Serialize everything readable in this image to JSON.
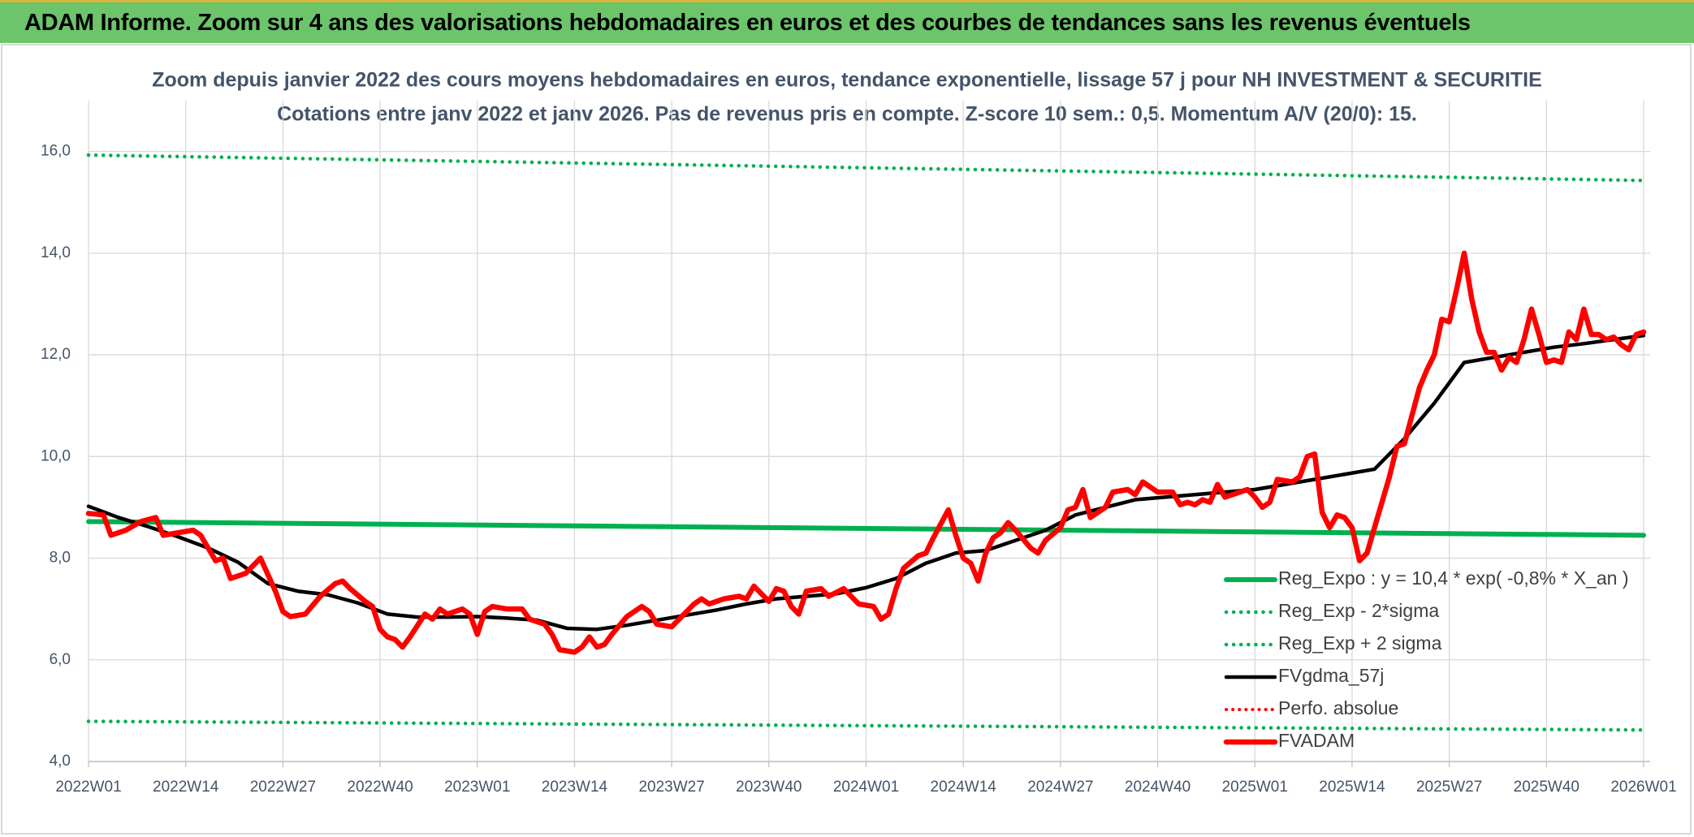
{
  "banner": {
    "title": "ADAM Informe. Zoom sur 4 ans des valorisations hebdomadaires en euros et des courbes de tendances sans les revenus éventuels"
  },
  "chart_data": {
    "type": "line",
    "title": "Zoom depuis janvier 2022 des cours moyens hebdomadaires en euros, tendance exponentielle, lissage 57 j pour NH INVESTMENT & SECURITIE",
    "subtitle": "Cotations entre janv 2022 et janv 2026. Pas de revenus pris en compte. Z-score 10 sem.: 0,5. Momentum A/V (20/0): 15.",
    "xlim": [
      0,
      208
    ],
    "xticks": [
      {
        "value": 0,
        "label": "2022W01"
      },
      {
        "value": 13,
        "label": "2022W14"
      },
      {
        "value": 26,
        "label": "2022W27"
      },
      {
        "value": 39,
        "label": "2022W40"
      },
      {
        "value": 52,
        "label": "2023W01"
      },
      {
        "value": 65,
        "label": "2023W14"
      },
      {
        "value": 78,
        "label": "2023W27"
      },
      {
        "value": 91,
        "label": "2023W40"
      },
      {
        "value": 104,
        "label": "2024W01"
      },
      {
        "value": 117,
        "label": "2024W14"
      },
      {
        "value": 130,
        "label": "2024W27"
      },
      {
        "value": 143,
        "label": "2024W40"
      },
      {
        "value": 156,
        "label": "2025W01"
      },
      {
        "value": 169,
        "label": "2025W14"
      },
      {
        "value": 182,
        "label": "2025W27"
      },
      {
        "value": 195,
        "label": "2025W40"
      },
      {
        "value": 208,
        "label": "2026W01"
      }
    ],
    "ylim": [
      4,
      17
    ],
    "yticks": [
      {
        "value": 4,
        "label": "4,0"
      },
      {
        "value": 6,
        "label": "6,0"
      },
      {
        "value": 8,
        "label": "8,0"
      },
      {
        "value": 10,
        "label": "10,0"
      },
      {
        "value": 12,
        "label": "12,0"
      },
      {
        "value": 14,
        "label": "14,0"
      },
      {
        "value": 16,
        "label": "16,0"
      }
    ],
    "grid": true,
    "legend": "bottom-right",
    "series": [
      {
        "name": "Reg_Expo : y = 10,4 * exp( -0,8% *  X_an )",
        "color": "#00b050",
        "dash": "solid",
        "x": [
          0,
          208
        ],
        "values": [
          8.72,
          8.45
        ]
      },
      {
        "name": "Reg_Exp - 2*sigma",
        "color": "#00b050",
        "dash": "dotted",
        "x": [
          0,
          208
        ],
        "values": [
          4.79,
          4.62
        ]
      },
      {
        "name": "Reg_Exp + 2 sigma",
        "color": "#00b050",
        "dash": "dotted",
        "x": [
          0,
          208
        ],
        "values": [
          15.93,
          15.43
        ]
      },
      {
        "name": "FVgdma_57j",
        "color": "#000000",
        "dash": "solid",
        "x": [
          0,
          4,
          8,
          12,
          16,
          20,
          24,
          28,
          32,
          36,
          40,
          44,
          48,
          52,
          56,
          60,
          64,
          68,
          72,
          76,
          80,
          84,
          88,
          92,
          96,
          100,
          104,
          108,
          112,
          116,
          120,
          124,
          128,
          132,
          136,
          140,
          144,
          148,
          152,
          156,
          160,
          164,
          168,
          172,
          176,
          180,
          184,
          188,
          192,
          196,
          200,
          204,
          208
        ],
        "values": [
          9.02,
          8.8,
          8.62,
          8.42,
          8.2,
          7.92,
          7.5,
          7.35,
          7.28,
          7.12,
          6.9,
          6.84,
          6.84,
          6.85,
          6.82,
          6.78,
          6.62,
          6.6,
          6.68,
          6.78,
          6.88,
          6.98,
          7.1,
          7.2,
          7.25,
          7.3,
          7.42,
          7.6,
          7.9,
          8.1,
          8.15,
          8.35,
          8.55,
          8.85,
          9.0,
          9.15,
          9.2,
          9.25,
          9.3,
          9.35,
          9.45,
          9.55,
          9.65,
          9.75,
          10.35,
          11.05,
          11.85,
          11.95,
          12.05,
          12.15,
          12.22,
          12.3,
          12.38
        ]
      },
      {
        "name": "Perfo. absolue",
        "color": "#ff0000",
        "dash": "dotted",
        "x": [],
        "values": []
      },
      {
        "name": "FVADAM",
        "color": "#ff0000",
        "dash": "solid",
        "x": [
          0,
          2,
          3,
          5,
          7,
          9,
          10,
          12,
          14,
          15,
          17,
          18,
          19,
          21,
          23,
          25,
          26,
          27,
          29,
          31,
          33,
          34,
          35,
          37,
          38,
          39,
          40,
          41,
          42,
          43,
          45,
          46,
          47,
          48,
          50,
          51,
          52,
          53,
          54,
          56,
          58,
          59,
          61,
          62,
          63,
          65,
          66,
          67,
          68,
          69,
          70,
          72,
          74,
          75,
          76,
          78,
          79,
          81,
          82,
          83,
          85,
          87,
          88,
          89,
          90,
          91,
          92,
          93,
          94,
          95,
          96,
          98,
          99,
          101,
          102,
          103,
          105,
          106,
          107,
          108,
          109,
          111,
          112,
          113,
          115,
          116,
          117,
          118,
          119,
          120,
          121,
          122,
          123,
          124,
          126,
          127,
          128,
          130,
          131,
          132,
          133,
          134,
          136,
          137,
          139,
          140,
          141,
          143,
          145,
          146,
          147,
          148,
          149,
          150,
          151,
          152,
          154,
          155,
          156,
          157,
          158,
          159,
          161,
          162,
          163,
          164,
          165,
          166,
          167,
          168,
          169,
          170,
          171,
          172,
          173,
          174,
          175,
          176,
          177,
          178,
          179,
          180,
          181,
          182,
          183,
          184,
          185,
          186,
          187,
          188,
          189,
          190,
          191,
          192,
          193,
          194,
          195,
          196,
          197,
          198,
          199,
          200,
          201,
          202,
          203,
          204,
          205,
          206,
          207,
          208
        ],
        "values": [
          8.88,
          8.85,
          8.45,
          8.55,
          8.72,
          8.8,
          8.45,
          8.5,
          8.55,
          8.45,
          7.95,
          8.0,
          7.6,
          7.7,
          8.0,
          7.35,
          6.95,
          6.85,
          6.9,
          7.25,
          7.5,
          7.55,
          7.4,
          7.15,
          7.05,
          6.6,
          6.45,
          6.4,
          6.25,
          6.45,
          6.9,
          6.8,
          7.0,
          6.9,
          7.0,
          6.9,
          6.5,
          6.95,
          7.05,
          7.0,
          7.0,
          6.8,
          6.7,
          6.5,
          6.2,
          6.15,
          6.25,
          6.45,
          6.25,
          6.3,
          6.5,
          6.85,
          7.05,
          6.95,
          6.7,
          6.65,
          6.8,
          7.1,
          7.2,
          7.1,
          7.2,
          7.25,
          7.2,
          7.45,
          7.3,
          7.15,
          7.4,
          7.35,
          7.05,
          6.9,
          7.35,
          7.4,
          7.25,
          7.4,
          7.25,
          7.1,
          7.05,
          6.8,
          6.9,
          7.4,
          7.8,
          8.05,
          8.1,
          8.4,
          8.95,
          8.45,
          8.0,
          7.9,
          7.55,
          8.1,
          8.4,
          8.5,
          8.7,
          8.55,
          8.2,
          8.1,
          8.35,
          8.6,
          8.95,
          9.0,
          9.35,
          8.8,
          9.0,
          9.3,
          9.35,
          9.25,
          9.5,
          9.3,
          9.3,
          9.05,
          9.1,
          9.05,
          9.15,
          9.1,
          9.45,
          9.2,
          9.3,
          9.35,
          9.2,
          9.0,
          9.1,
          9.55,
          9.5,
          9.6,
          10.0,
          10.05,
          8.9,
          8.6,
          8.85,
          8.8,
          8.6,
          7.95,
          8.1,
          8.6,
          9.1,
          9.6,
          10.2,
          10.25,
          10.8,
          11.35,
          11.7,
          12.0,
          12.7,
          12.65,
          13.3,
          14.0,
          13.1,
          12.45,
          12.05,
          12.05,
          11.7,
          11.95,
          11.85,
          12.3,
          12.9,
          12.4,
          11.85,
          11.9,
          11.85,
          12.45,
          12.3,
          12.9,
          12.4,
          12.4,
          12.3,
          12.35,
          12.2,
          12.1,
          12.4,
          12.45
        ]
      }
    ]
  }
}
